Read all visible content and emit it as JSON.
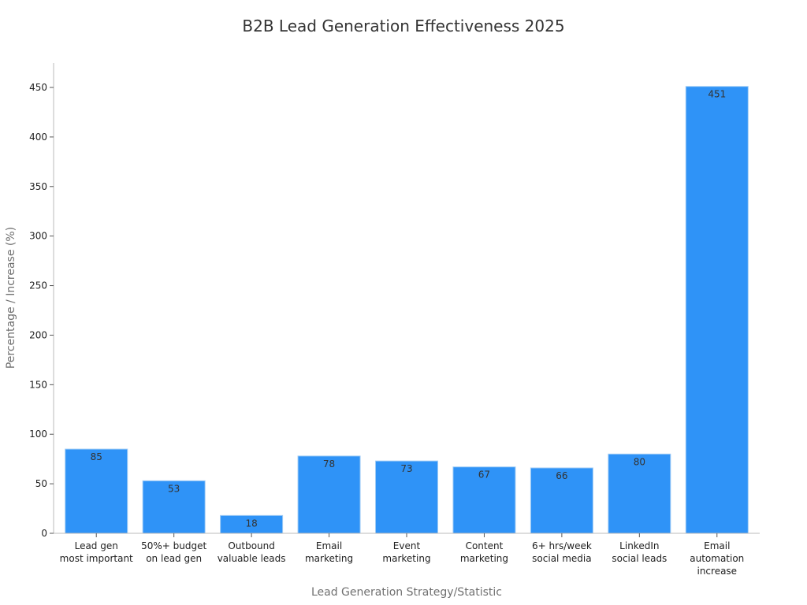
{
  "chart_data": {
    "type": "bar",
    "title": "B2B Lead Generation Effectiveness 2025",
    "xlabel": "Lead Generation Strategy/Statistic",
    "ylabel": "Percentage / Increase (%)",
    "ylim": [
      0,
      470
    ],
    "yticks": [
      0,
      50,
      100,
      150,
      200,
      250,
      300,
      350,
      400,
      450
    ],
    "grid": false,
    "legend": "none",
    "bar_color": "#2f93f7",
    "bar_edge_color": "#9fcbf5",
    "categories": [
      [
        "Lead gen",
        "most important"
      ],
      [
        "50%+ budget",
        "on lead gen"
      ],
      [
        "Outbound",
        "valuable leads"
      ],
      [
        "Email",
        "marketing"
      ],
      [
        "Event",
        "marketing"
      ],
      [
        "Content",
        "marketing"
      ],
      [
        "6+ hrs/week",
        "social media"
      ],
      [
        "LinkedIn",
        "social leads"
      ],
      [
        "Email",
        "automation",
        "increase"
      ]
    ],
    "values": [
      85,
      53,
      18,
      78,
      73,
      67,
      66,
      80,
      451
    ]
  }
}
